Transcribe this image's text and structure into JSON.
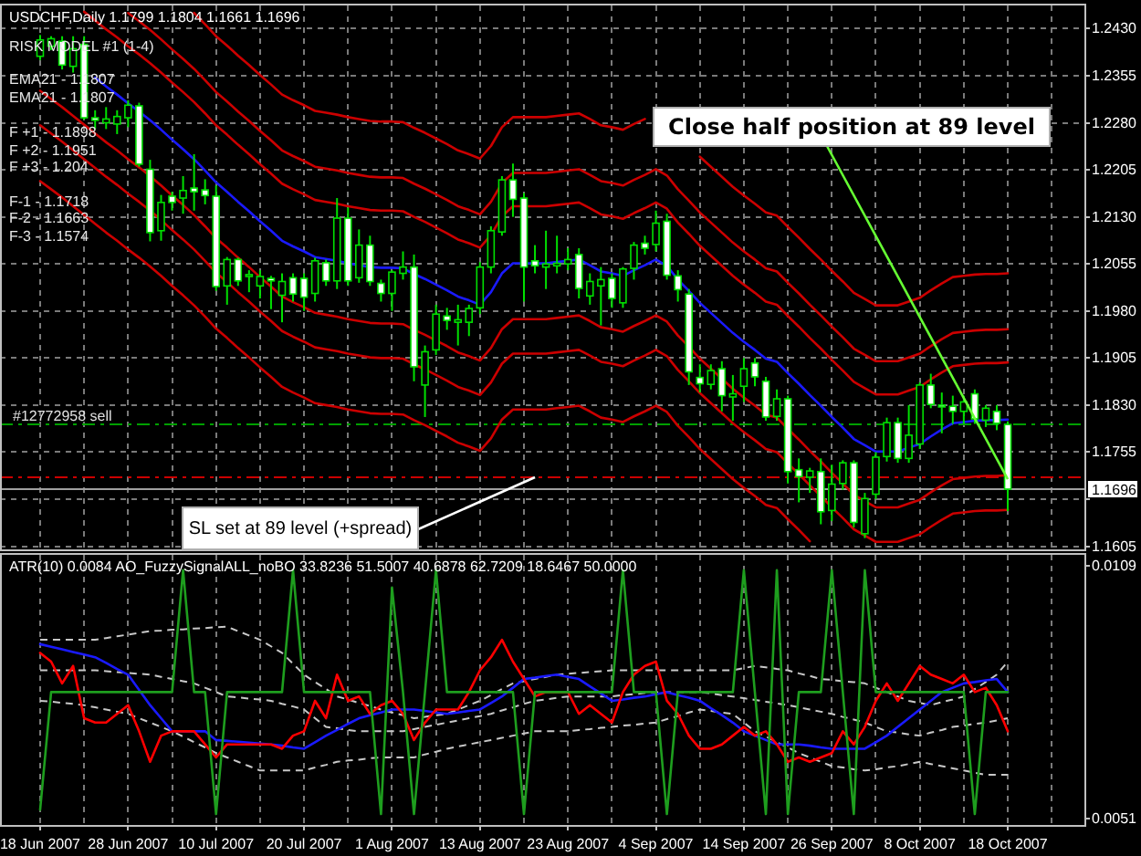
{
  "chart_data": [
    {
      "type": "candlestick",
      "title": "USDCHF,Daily 1.1799 1.1804 1.1661 1.1696",
      "color": "#00e000",
      "categories": [
        "18 Jun 2007",
        null,
        null,
        null,
        null,
        null,
        null,
        null,
        "28 Jun 2007",
        null,
        null,
        null,
        null,
        null,
        null,
        null,
        "10 Jul 2007",
        null,
        null,
        null,
        null,
        null,
        null,
        null,
        "20 Jul 2007",
        null,
        null,
        null,
        null,
        null,
        null,
        null,
        "1 Aug 2007",
        null,
        null,
        null,
        null,
        null,
        null,
        null,
        "13 Aug 2007",
        null,
        null,
        null,
        null,
        null,
        null,
        null,
        "23 Aug 2007",
        null,
        null,
        null,
        null,
        null,
        null,
        null,
        "4 Sep 2007",
        null,
        null,
        null,
        null,
        null,
        null,
        null,
        "14 Sep 2007",
        null,
        null,
        null,
        null,
        null,
        null,
        null,
        "26 Sep 2007",
        null,
        null,
        null,
        null,
        null,
        null,
        null,
        "8 Oct 2007",
        null,
        null,
        null,
        null,
        null,
        null,
        null,
        "18 Oct 2007"
      ],
      "ohlc": [
        [
          1.2386,
          1.242,
          1.238,
          1.2412
        ],
        [
          1.2402,
          1.2418,
          1.2396,
          1.2414
        ],
        [
          1.241,
          1.2418,
          1.2365,
          1.2372
        ],
        [
          1.237,
          1.2418,
          1.236,
          1.2398
        ],
        [
          1.2405,
          1.2418,
          1.2285,
          1.2288
        ],
        [
          1.2288,
          1.23,
          1.227,
          1.2284
        ],
        [
          1.228,
          1.2305,
          1.227,
          1.2286
        ],
        [
          1.2278,
          1.23,
          1.2262,
          1.229
        ],
        [
          1.2288,
          1.2316,
          1.2273,
          1.2308
        ],
        [
          1.2307,
          1.2312,
          1.221,
          1.2214
        ],
        [
          1.2206,
          1.2221,
          1.2091,
          1.2105
        ],
        [
          1.2108,
          1.2165,
          1.2092,
          1.2153
        ],
        [
          1.2163,
          1.217,
          1.214,
          1.2153
        ],
        [
          1.216,
          1.2195,
          1.2135,
          1.2172
        ],
        [
          1.2176,
          1.223,
          1.214,
          1.217
        ],
        [
          1.2173,
          1.219,
          1.215,
          1.2164
        ],
        [
          1.2163,
          1.218,
          1.2012,
          1.2019
        ],
        [
          1.202,
          1.2066,
          1.199,
          1.2062
        ],
        [
          1.2062,
          1.2065,
          1.202,
          1.2028
        ],
        [
          1.2035,
          1.2045,
          1.201,
          1.2038
        ],
        [
          1.202,
          1.2045,
          1.2,
          1.2035
        ],
        [
          1.2032,
          1.2036,
          1.1983,
          1.2028
        ],
        [
          1.2005,
          1.204,
          1.1962,
          1.2027
        ],
        [
          1.2033,
          1.204,
          1.1995,
          1.2007
        ],
        [
          1.2032,
          1.204,
          1.198,
          1.2002
        ],
        [
          1.2008,
          1.2065,
          1.1995,
          1.206
        ],
        [
          1.2057,
          1.2062,
          1.202,
          1.2028
        ],
        [
          1.2028,
          1.216,
          1.2015,
          1.2128
        ],
        [
          1.2128,
          1.2145,
          1.202,
          1.2028
        ],
        [
          1.2033,
          1.211,
          1.2025,
          1.2085
        ],
        [
          1.2085,
          1.21,
          1.202,
          1.2027
        ],
        [
          1.2024,
          1.203,
          1.1995,
          1.2008
        ],
        [
          1.2008,
          1.2045,
          1.198,
          1.2042
        ],
        [
          1.204,
          1.2075,
          1.203,
          1.205
        ],
        [
          1.205,
          1.207,
          1.1868,
          1.1891
        ],
        [
          1.1862,
          1.1925,
          1.1811,
          1.1915
        ],
        [
          1.1918,
          1.199,
          1.191,
          1.1975
        ],
        [
          1.1972,
          1.1985,
          1.195,
          1.1965
        ],
        [
          1.1962,
          1.199,
          1.1925,
          1.1966
        ],
        [
          1.1962,
          1.199,
          1.194,
          1.1984
        ],
        [
          1.1985,
          1.2058,
          1.1975,
          1.205
        ],
        [
          1.205,
          1.2115,
          1.204,
          1.2108
        ],
        [
          1.2106,
          1.2195,
          1.21,
          1.2189
        ],
        [
          1.2189,
          1.2215,
          1.213,
          1.2158
        ],
        [
          1.216,
          1.2168,
          1.1995,
          1.205
        ],
        [
          1.206,
          1.2085,
          1.204,
          1.2052
        ],
        [
          1.205,
          1.2108,
          1.2015,
          1.2055
        ],
        [
          1.2052,
          1.21,
          1.204,
          1.2056
        ],
        [
          1.2055,
          1.208,
          1.2045,
          1.2062
        ],
        [
          1.207,
          1.208,
          1.2,
          1.2016
        ],
        [
          1.2004,
          1.204,
          1.199,
          1.2027
        ],
        [
          1.202,
          1.205,
          1.1957,
          1.203
        ],
        [
          1.2032,
          1.204,
          1.1985,
          1.2
        ],
        [
          1.1993,
          1.205,
          1.1985,
          1.2047
        ],
        [
          1.2048,
          1.209,
          1.203,
          1.2085
        ],
        [
          1.2088,
          1.21,
          1.207,
          1.208
        ],
        [
          1.2086,
          1.214,
          1.2075,
          1.212
        ],
        [
          1.2123,
          1.2135,
          1.203,
          1.2037
        ],
        [
          1.2036,
          1.2045,
          1.1995,
          1.2014
        ],
        [
          1.2007,
          1.2015,
          1.1862,
          1.1883
        ],
        [
          1.1874,
          1.1895,
          1.185,
          1.1864
        ],
        [
          1.1863,
          1.1895,
          1.1855,
          1.1885
        ],
        [
          1.1888,
          1.19,
          1.182,
          1.1845
        ],
        [
          1.1843,
          1.1878,
          1.1805,
          1.1848
        ],
        [
          1.186,
          1.1905,
          1.1835,
          1.1888
        ],
        [
          1.1897,
          1.1905,
          1.186,
          1.1875
        ],
        [
          1.1868,
          1.1875,
          1.1805,
          1.1811
        ],
        [
          1.1812,
          1.1855,
          1.1805,
          1.184
        ],
        [
          1.184,
          1.1845,
          1.1705,
          1.1724
        ],
        [
          1.1727,
          1.1745,
          1.1675,
          1.1716
        ],
        [
          1.1715,
          1.173,
          1.169,
          1.1725
        ],
        [
          1.1724,
          1.1745,
          1.164,
          1.166
        ],
        [
          1.1662,
          1.1735,
          1.1645,
          1.1704
        ],
        [
          1.1705,
          1.1742,
          1.1695,
          1.1738
        ],
        [
          1.1738,
          1.1742,
          1.1635,
          1.1643
        ],
        [
          1.1625,
          1.169,
          1.1618,
          1.1681
        ],
        [
          1.1688,
          1.1755,
          1.168,
          1.1747
        ],
        [
          1.1748,
          1.181,
          1.174,
          1.1802
        ],
        [
          1.1802,
          1.181,
          1.1738,
          1.1745
        ],
        [
          1.1745,
          1.183,
          1.1738,
          1.1782
        ],
        [
          1.1768,
          1.1866,
          1.176,
          1.1862
        ],
        [
          1.1862,
          1.188,
          1.1825,
          1.1831
        ],
        [
          1.183,
          1.185,
          1.1785,
          1.1827
        ],
        [
          1.1828,
          1.1845,
          1.18,
          1.182
        ],
        [
          1.182,
          1.1845,
          1.18,
          1.1835
        ],
        [
          1.1848,
          1.1855,
          1.18,
          1.1808
        ],
        [
          1.1806,
          1.183,
          1.1795,
          1.1825
        ],
        [
          1.182,
          1.183,
          1.179,
          1.1801
        ],
        [
          1.1799,
          1.1804,
          1.1661,
          1.1696
        ]
      ],
      "tick_labels": "y",
      "ylim": [
        1.16,
        1.2467
      ],
      "yticks": [
        {
          "value": 1.243,
          "label": "1.2430"
        },
        1.2355,
        {
          "value": 1.228,
          "label": "1.2280"
        },
        1.2205,
        {
          "value": 1.213,
          "label": "1.2130"
        },
        1.2055,
        {
          "value": 1.198,
          "label": "1.1980"
        },
        1.1905,
        {
          "value": 1.183,
          "label": "1.1830"
        },
        1.1755,
        {
          "value": 1.168,
          "label": null
        },
        1.1605
      ],
      "grid": true,
      "series": [
        {
          "type": "line",
          "color": "#cc0000",
          "values": [
            null,
            null,
            null,
            null,
            1.2457,
            1.2443,
            1.2429,
            1.2416,
            1.2402,
            1.2389,
            1.2375,
            1.236,
            1.2344,
            1.2329,
            1.2313,
            1.2295,
            1.2276,
            1.2261,
            1.2245,
            1.223,
            1.2214,
            1.2199,
            1.2183,
            1.2174,
            1.2166,
            1.2157,
            1.2154,
            1.2151,
            1.2147,
            1.2144,
            1.2141,
            1.214,
            1.214,
            1.2139,
            1.213,
            1.2122,
            1.2113,
            1.2104,
            1.2094,
            1.2088,
            1.2081,
            1.2101,
            1.2131,
            1.2147,
            1.2147,
            1.2147,
            1.2147,
            1.2149,
            1.2151,
            1.2153,
            1.2144,
            1.2134,
            1.2131,
            1.2127,
            1.2136,
            1.2144,
            1.2153,
            1.2143,
            1.2121,
            1.2103,
            1.2084,
            1.2068,
            1.2052,
            1.2036,
            1.2022,
            1.2009,
            1.1995,
            1.199,
            1.1972,
            1.1955,
            1.1937,
            1.192,
            1.1902,
            1.1885,
            1.1867,
            1.1857,
            1.1847,
            1.1847,
            1.1847,
            1.1853,
            1.1859,
            1.1871,
            1.1882,
            1.1892,
            1.1894,
            1.1896,
            1.1897,
            1.1897,
            1.1898
          ]
        },
        {
          "type": "line",
          "color": "#cc0000",
          "values": [
            null,
            null,
            null,
            null,
            null,
            null,
            null,
            null,
            1.2455,
            1.2442,
            1.2428,
            1.2413,
            1.2397,
            1.2382,
            1.2366,
            1.2348,
            1.2329,
            1.2314,
            1.2298,
            1.2283,
            1.2267,
            1.2252,
            1.2236,
            1.2227,
            1.2219,
            1.221,
            1.2207,
            1.2204,
            1.22,
            1.2197,
            1.2194,
            1.2193,
            1.2193,
            1.2192,
            1.2183,
            1.2175,
            1.2166,
            1.2157,
            1.2147,
            1.2141,
            1.2134,
            1.2154,
            1.2184,
            1.22,
            1.22,
            1.22,
            1.22,
            1.2202,
            1.2204,
            1.2206,
            1.2197,
            1.2187,
            1.2184,
            1.218,
            1.2189,
            1.2197,
            1.2206,
            1.2196,
            1.2174,
            1.2156,
            1.2137,
            1.2121,
            1.2105,
            1.2089,
            1.2075,
            1.2062,
            1.2048,
            1.2043,
            1.2025,
            1.2008,
            1.199,
            1.1973,
            1.1955,
            1.1938,
            1.192,
            1.191,
            1.19,
            1.19,
            1.19,
            1.1906,
            1.1912,
            1.1924,
            1.1935,
            1.1945,
            1.1947,
            1.1949,
            1.195,
            1.195,
            1.1951
          ]
        },
        {
          "type": "line",
          "color": "#cc0000",
          "values": [
            null,
            null,
            null,
            null,
            null,
            null,
            null,
            null,
            null,
            null,
            null,
            null,
            null,
            null,
            1.2455,
            1.2437,
            1.2418,
            1.2403,
            1.2387,
            1.2372,
            1.2356,
            1.2341,
            1.2325,
            1.2316,
            1.2308,
            1.2299,
            1.2296,
            1.2293,
            1.2289,
            1.2286,
            1.2283,
            1.2282,
            1.2282,
            1.2281,
            1.2272,
            1.2264,
            1.2255,
            1.2246,
            1.2236,
            1.223,
            1.2223,
            1.2243,
            1.2273,
            1.2289,
            1.2289,
            1.2289,
            1.2289,
            1.2291,
            1.2293,
            1.2295,
            1.2286,
            1.2276,
            1.2273,
            1.2269,
            1.2278,
            1.2286,
            null,
            null,
            null,
            null,
            1.2226,
            1.221,
            1.2194,
            1.2178,
            1.2164,
            1.2151,
            1.2137,
            1.2132,
            1.2114,
            1.2097,
            1.2079,
            1.2062,
            1.2044,
            1.2027,
            1.2009,
            1.1999,
            1.1989,
            1.1989,
            1.1989,
            1.1995,
            1.2001,
            1.2013,
            1.2024,
            1.2034,
            1.2036,
            1.2038,
            1.2039,
            1.2039,
            1.204
          ]
        },
        {
          "type": "line",
          "color": "#cc0000",
          "values": [
            1.2331,
            1.2318,
            1.2305,
            1.2291,
            1.2277,
            1.2263,
            1.2249,
            1.2236,
            1.2222,
            1.2209,
            1.2195,
            1.218,
            1.2164,
            1.2149,
            1.2133,
            1.2115,
            1.2096,
            1.2081,
            1.2065,
            1.205,
            1.2034,
            1.2019,
            1.2003,
            1.1994,
            1.1986,
            1.1977,
            1.1974,
            1.1971,
            1.1967,
            1.1964,
            1.1961,
            1.196,
            1.196,
            1.1959,
            1.195,
            1.1942,
            1.1933,
            1.1924,
            1.1914,
            1.1908,
            1.1901,
            1.1921,
            1.1951,
            1.1967,
            1.1967,
            1.1967,
            1.1967,
            1.1969,
            1.1971,
            1.1973,
            1.1964,
            1.1954,
            1.1951,
            1.1947,
            1.1956,
            1.1964,
            1.1973,
            1.1963,
            1.1941,
            1.1923,
            1.1904,
            1.1888,
            1.1872,
            1.1856,
            1.1842,
            1.1829,
            1.1815,
            1.181,
            1.1792,
            1.1775,
            1.1757,
            1.174,
            1.1722,
            1.1705,
            1.1687,
            1.1677,
            1.1667,
            1.1667,
            1.1667,
            1.1673,
            1.1679,
            1.1691,
            1.1702,
            1.1712,
            1.1714,
            1.1716,
            1.1717,
            1.1717,
            1.1718
          ]
        },
        {
          "type": "line",
          "color": "#cc0000",
          "values": [
            1.2276,
            1.2263,
            1.225,
            1.2236,
            1.2222,
            1.2208,
            1.2194,
            1.2181,
            1.2167,
            1.2154,
            1.214,
            1.2125,
            1.2109,
            1.2094,
            1.2078,
            1.206,
            1.2041,
            1.2026,
            1.201,
            1.1995,
            1.1979,
            1.1964,
            1.1948,
            1.1939,
            1.1931,
            1.1922,
            1.1919,
            1.1916,
            1.1912,
            1.1909,
            1.1906,
            1.1905,
            1.1905,
            1.1904,
            1.1895,
            1.1887,
            1.1878,
            1.1869,
            1.1859,
            1.1853,
            1.1846,
            1.1866,
            1.1896,
            1.1912,
            1.1912,
            1.1912,
            1.1912,
            1.1914,
            1.1916,
            1.1918,
            1.1909,
            1.1899,
            1.1896,
            1.1892,
            1.1901,
            1.1909,
            1.1918,
            1.1908,
            1.1886,
            1.1868,
            1.1849,
            1.1833,
            1.1817,
            1.1801,
            1.1787,
            1.1774,
            1.176,
            1.1755,
            1.1737,
            1.172,
            1.1702,
            1.1685,
            1.1667,
            1.165,
            1.1632,
            1.1622,
            1.1612,
            1.1612,
            1.1612,
            1.1618,
            1.1624,
            1.1636,
            1.1647,
            1.1657,
            1.1659,
            1.1661,
            1.1662,
            1.1662,
            1.1663
          ]
        },
        {
          "type": "line",
          "color": "#cc0000",
          "values": [
            1.2187,
            1.2174,
            1.2161,
            1.2147,
            1.2133,
            1.2119,
            1.2105,
            1.2092,
            1.2078,
            1.2065,
            1.2051,
            1.2036,
            1.202,
            1.2005,
            1.1989,
            1.1971,
            1.1952,
            1.1937,
            1.1921,
            1.1906,
            1.189,
            1.1875,
            1.1859,
            1.185,
            1.1842,
            1.1833,
            1.183,
            1.1827,
            1.1823,
            1.182,
            1.1817,
            1.1816,
            1.1816,
            1.1815,
            1.1806,
            1.1798,
            1.1789,
            1.178,
            1.177,
            1.1764,
            1.1757,
            1.1777,
            1.1807,
            1.1823,
            1.1823,
            1.1823,
            1.1823,
            1.1825,
            1.1827,
            1.1829,
            1.182,
            1.181,
            1.1807,
            1.1803,
            1.1812,
            1.182,
            1.1829,
            1.1819,
            1.1797,
            1.1779,
            1.176,
            1.1744,
            1.1728,
            1.1712,
            1.1698,
            1.1685,
            1.1671,
            1.1666,
            1.1648,
            1.1631,
            1.1613,
            null,
            null,
            null,
            null,
            null,
            null,
            null,
            null,
            null,
            null,
            null,
            null,
            null,
            null,
            null,
            null,
            null,
            null
          ]
        },
        {
          "type": "line",
          "color": "#1a1aff",
          "values": [
            null,
            null,
            null,
            null,
            null,
            1.2352,
            1.2338,
            1.2325,
            1.2311,
            1.2298,
            1.2284,
            1.2269,
            1.2253,
            1.2238,
            1.2222,
            1.2204,
            1.2185,
            1.217,
            1.2154,
            1.2139,
            1.2123,
            1.2108,
            1.2092,
            1.2083,
            1.2075,
            1.2066,
            1.2063,
            1.206,
            1.2056,
            1.2053,
            1.205,
            1.2049,
            1.2049,
            1.2048,
            1.2039,
            1.2031,
            1.2022,
            1.2013,
            1.2003,
            1.1997,
            1.199,
            1.201,
            1.204,
            1.2056,
            1.2056,
            1.2056,
            1.2056,
            1.2058,
            1.206,
            1.2062,
            1.2053,
            1.2043,
            1.204,
            1.2036,
            1.2045,
            1.2053,
            1.2062,
            1.2052,
            1.203,
            1.2012,
            1.1993,
            1.1977,
            1.1961,
            1.1945,
            1.1931,
            1.1918,
            1.1904,
            1.1899,
            1.1881,
            1.1864,
            1.1846,
            1.1829,
            1.1811,
            1.1794,
            1.1776,
            1.1766,
            1.1756,
            1.1756,
            1.1756,
            1.1762,
            1.1768,
            1.178,
            1.1791,
            1.1801,
            1.1803,
            1.1805,
            1.1806,
            1.1806,
            1.1807
          ]
        }
      ],
      "ref_lines": [
        {
          "axis": "y",
          "value": 1.1799,
          "label": "#12772958 sell",
          "color": "#00a000",
          "line_style": "dashed"
        },
        {
          "axis": "y",
          "value": 1.1715,
          "color": "#cc0000",
          "line_style": "dashed"
        },
        {
          "axis": "y",
          "value": 1.1696,
          "label": "1.1696",
          "color": "#a0a0a0",
          "line_style": "solid"
        }
      ],
      "annotations": [
        "RISK MODEL #1 (1-4)",
        "EMA21 - 1.1807",
        "EMA21 - 1.1807",
        "F +1 - 1.1898",
        "F +2 - 1.1951",
        "F +3 - 1.204",
        "F-1 - 1.1718",
        "F-2 - 1.1663",
        "F-3 - 1.1574",
        {
          "text": "Close half position at 89 level",
          "x": "18 Oct 2007",
          "y": 1.1712
        },
        {
          "text": "SL set at 89 level (+spread)",
          "y": 1.1715
        }
      ]
    },
    {
      "type": "line",
      "title": "ATR(10) 0.0084 AO_FuzzySignalALL_noBO 33.8236 51.5007 40.6878 62.7209 18.6467 50.0000",
      "categories": [
        "18 Jun 2007",
        null,
        null,
        null,
        null,
        null,
        null,
        null,
        "28 Jun 2007",
        null,
        null,
        null,
        null,
        null,
        null,
        null,
        "10 Jul 2007",
        null,
        null,
        null,
        null,
        null,
        null,
        null,
        "20 Jul 2007",
        null,
        null,
        null,
        null,
        null,
        null,
        null,
        "1 Aug 2007",
        null,
        null,
        null,
        null,
        null,
        null,
        null,
        "13 Aug 2007",
        null,
        null,
        null,
        null,
        null,
        null,
        null,
        "23 Aug 2007",
        null,
        null,
        null,
        null,
        null,
        null,
        null,
        "4 Sep 2007",
        null,
        null,
        null,
        null,
        null,
        null,
        null,
        "14 Sep 2007",
        null,
        null,
        null,
        null,
        null,
        null,
        null,
        "26 Sep 2007",
        null,
        null,
        null,
        null,
        null,
        null,
        null,
        "8 Oct 2007",
        null,
        null,
        null,
        null,
        null,
        null,
        null,
        "18 Oct 2007"
      ],
      "ylim": [
        0.00495,
        0.01115
      ],
      "yticks": [
        0.0109,
        0.0051
      ],
      "grid": "x",
      "series": [
        {
          "color": "#c8c8c8",
          "line_style": "dashed",
          "values": [
            0.0092,
            0.0092,
            0.0092,
            0.0092,
            0.0092,
            0.0092,
            0.00924,
            0.00928,
            0.00932,
            0.00936,
            0.0094,
            0.00941,
            0.00943,
            0.00944,
            0.00946,
            0.00947,
            0.00949,
            0.0095,
            0.0094,
            0.0093,
            0.0092,
            0.00905,
            0.0089,
            0.00865,
            0.0084,
            0.00823,
            0.00807,
            0.0079,
            0.00783,
            0.00775,
            0.00768,
            0.0076,
            0.00753,
            0.00747,
            0.0074,
            0.00743,
            0.00747,
            0.0075,
            0.0076,
            0.0077,
            0.0078,
            0.00793,
            0.00807,
            0.0082,
            0.00825,
            0.0083,
            0.00835,
            0.0084,
            0.00842,
            0.00844,
            0.00846,
            0.00848,
            0.0085,
            0.0085,
            0.0085,
            0.0085,
            0.0085,
            0.0085,
            0.0085,
            0.0085,
            0.0085,
            0.0085,
            0.0085,
            0.0085,
            0.00855,
            0.0086,
            0.00857,
            0.00853,
            0.0085,
            0.00843,
            0.00837,
            0.0083,
            0.00828,
            0.00825,
            0.00823,
            0.0082,
            0.0081,
            0.008,
            0.0079,
            0.0078,
            0.00775,
            0.0077,
            0.00777,
            0.00783,
            0.0079,
            0.00807,
            0.00823,
            0.0084,
            0.0087
          ]
        },
        {
          "color": "#c8c8c8",
          "line_style": "dashed",
          "values": [
            0.0085,
            0.0085,
            0.0085,
            0.0085,
            0.0085,
            0.0085,
            0.00848,
            0.00846,
            0.00844,
            0.00842,
            0.0084,
            0.00835,
            0.0083,
            0.00825,
            0.0082,
            0.0081,
            0.008,
            0.0079,
            0.00788,
            0.00785,
            0.00783,
            0.0078,
            0.00773,
            0.00767,
            0.0076,
            0.0074,
            0.0072,
            0.00717,
            0.00713,
            0.0071,
            0.0071,
            0.0071,
            0.0071,
            0.0071,
            0.00715,
            0.0072,
            0.00725,
            0.0073,
            0.00735,
            0.0074,
            0.00745,
            0.0075,
            0.00758,
            0.00765,
            0.00773,
            0.0078,
            0.00783,
            0.00787,
            0.0079,
            0.0079,
            0.0079,
            0.0079,
            0.0079,
            0.00793,
            0.00795,
            0.00798,
            0.008,
            0.008,
            0.008,
            0.008,
            0.008,
            0.00797,
            0.00793,
            0.0079,
            0.00786,
            0.00782,
            0.00778,
            0.00774,
            0.0077,
            0.00765,
            0.0076,
            0.00755,
            0.0075,
            0.00743,
            0.00737,
            0.0073,
            0.0072,
            0.0071,
            0.00707,
            0.00703,
            0.007,
            0.00707,
            0.00713,
            0.0072,
            0.00723,
            0.00727,
            0.0073,
            0.00735,
            0.0074
          ]
        },
        {
          "color": "#c8c8c8",
          "line_style": "dashed",
          "values": [
            0.0078,
            0.00778,
            0.00775,
            0.00773,
            0.0077,
            0.00765,
            0.0076,
            0.00755,
            0.0075,
            0.0074,
            0.0073,
            0.0072,
            0.0071,
            0.00698,
            0.00685,
            0.00673,
            0.0066,
            0.0065,
            0.0064,
            0.0063,
            0.0062,
            0.0062,
            0.0062,
            0.0062,
            0.0062,
            0.00627,
            0.00633,
            0.0064,
            0.00643,
            0.00645,
            0.00648,
            0.0065,
            0.0065,
            0.0065,
            0.0065,
            0.00657,
            0.00663,
            0.0067,
            0.00675,
            0.0068,
            0.00685,
            0.0069,
            0.00695,
            0.007,
            0.00705,
            0.0071,
            0.0071,
            0.0071,
            0.0071,
            0.00713,
            0.00715,
            0.00718,
            0.0072,
            0.00723,
            0.00725,
            0.00728,
            0.0073,
            0.00738,
            0.00745,
            0.00753,
            0.0076,
            0.00757,
            0.00753,
            0.0075,
            0.0073,
            0.0071,
            0.00698,
            0.00685,
            0.00673,
            0.0066,
            0.0065,
            0.0064,
            0.0063,
            0.00627,
            0.00623,
            0.0062,
            0.00623,
            0.00627,
            0.0063,
            0.00635,
            0.0064,
            0.00635,
            0.0063,
            0.00625,
            0.0062,
            0.00615,
            0.0061,
            0.0061,
            0.0061
          ]
        },
        {
          "color": "#1a1aff",
          "values": [
            0.0091,
            0.00904,
            0.00898,
            0.00892,
            0.00886,
            0.0088,
            0.00867,
            0.00853,
            0.0084,
            0.00805,
            0.0077,
            0.0074,
            0.0071,
            0.0071,
            0.0071,
            0.0071,
            0.0069,
            0.00688,
            0.00686,
            0.00684,
            0.00682,
            0.0068,
            0.00677,
            0.00673,
            0.0067,
            0.00685,
            0.007,
            0.00713,
            0.00727,
            0.0074,
            0.00747,
            0.00753,
            0.0076,
            0.0076,
            0.0076,
            0.00757,
            0.00753,
            0.0075,
            0.00753,
            0.00757,
            0.0076,
            0.00775,
            0.0079,
            0.0081,
            0.0083,
            0.00833,
            0.00837,
            0.0084,
            0.00835,
            0.0083,
            0.00813,
            0.00797,
            0.0078,
            0.00783,
            0.00787,
            0.0079,
            0.00795,
            0.008,
            0.00793,
            0.00787,
            0.0078,
            0.00763,
            0.00747,
            0.0073,
            0.0071,
            0.007,
            0.0069,
            0.0068,
            0.0068,
            0.0068,
            0.00677,
            0.00673,
            0.0067,
            0.0067,
            0.0067,
            0.0067,
            0.00685,
            0.007,
            0.0072,
            0.0074,
            0.0076,
            0.0078,
            0.008,
            0.0081,
            0.0082,
            0.00823,
            0.00827,
            0.0083,
            0.008
          ]
        },
        {
          "color": "#ff0000",
          "values": [
            0.0089,
            0.0087,
            0.0082,
            0.0086,
            0.0074,
            0.0073,
            0.0073,
            0.0075,
            0.0077,
            0.0071,
            0.0064,
            0.007,
            0.0071,
            0.0071,
            0.0071,
            0.0068,
            0.0065,
            0.0068,
            0.0068,
            0.0068,
            0.0068,
            0.0068,
            0.0067,
            0.007,
            0.0071,
            0.0078,
            0.0074,
            0.0084,
            0.0078,
            0.0079,
            0.0075,
            0.0077,
            0.0078,
            0.0075,
            0.0069,
            0.0073,
            0.0076,
            0.0076,
            0.0076,
            0.008,
            0.0085,
            0.0088,
            0.0092,
            0.0087,
            0.0083,
            0.0079,
            0.008,
            0.008,
            0.008,
            0.0075,
            0.0077,
            0.0075,
            0.0073,
            0.008,
            0.0084,
            0.0086,
            0.0087,
            0.0078,
            0.0075,
            0.007,
            0.0067,
            0.0067,
            0.0068,
            0.007,
            0.0072,
            0.007,
            0.0071,
            0.0068,
            0.0064,
            0.0065,
            0.0064,
            0.0065,
            0.0066,
            0.0071,
            0.0068,
            0.0072,
            0.0078,
            0.0082,
            0.0078,
            0.0082,
            0.0086,
            0.0084,
            0.0083,
            0.0082,
            0.0084,
            0.008,
            0.0081,
            0.0077,
            0.0071
          ]
        },
        {
          "color": "#1e9e1e",
          "values": [
            0.0053,
            0.008,
            0.008,
            0.008,
            0.008,
            0.008,
            0.008,
            0.008,
            0.008,
            0.008,
            0.008,
            0.008,
            0.008,
            0.0108,
            0.008,
            0.008,
            0.0052,
            0.008,
            0.008,
            0.008,
            0.008,
            0.008,
            0.008,
            0.0108,
            0.008,
            0.008,
            0.008,
            0.008,
            0.008,
            0.008,
            0.008,
            0.0052,
            0.0104,
            0.008,
            0.0052,
            0.008,
            0.0108,
            0.008,
            0.008,
            0.008,
            0.008,
            0.008,
            0.008,
            0.008,
            0.0052,
            0.008,
            0.008,
            0.008,
            0.008,
            0.008,
            0.008,
            0.008,
            0.008,
            0.0108,
            0.008,
            0.008,
            0.008,
            0.0052,
            0.008,
            0.008,
            0.008,
            0.008,
            0.008,
            0.008,
            0.0108,
            0.008,
            0.0052,
            0.0108,
            0.0052,
            0.008,
            0.008,
            0.008,
            0.0108,
            0.008,
            0.0052,
            0.0108,
            0.008,
            0.008,
            0.008,
            0.008,
            0.008,
            0.008,
            0.008,
            0.008,
            0.008,
            0.0052,
            0.008,
            0.008,
            0.008
          ]
        }
      ]
    }
  ]
}
